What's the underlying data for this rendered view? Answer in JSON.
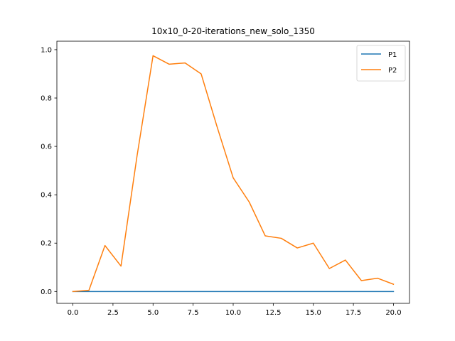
{
  "chart_data": {
    "type": "line",
    "title": "10x10_0-20-iterations_new_solo_1350",
    "xlabel": "",
    "ylabel": "",
    "xlim": [
      -1.0,
      21.0
    ],
    "ylim": [
      -0.049,
      1.035
    ],
    "xticks": [
      0.0,
      2.5,
      5.0,
      7.5,
      10.0,
      12.5,
      15.0,
      17.5,
      20.0
    ],
    "xtick_labels": [
      "0.0",
      "2.5",
      "5.0",
      "7.5",
      "10.0",
      "12.5",
      "15.0",
      "17.5",
      "20.0"
    ],
    "yticks": [
      0.0,
      0.2,
      0.4,
      0.6,
      0.8,
      1.0
    ],
    "ytick_labels": [
      "0.0",
      "0.2",
      "0.4",
      "0.6",
      "0.8",
      "1.0"
    ],
    "grid": false,
    "legend_position": "top-right",
    "x": [
      0,
      1,
      2,
      3,
      4,
      5,
      6,
      7,
      8,
      9,
      10,
      11,
      12,
      13,
      14,
      15,
      16,
      17,
      18,
      19,
      20
    ],
    "series": [
      {
        "name": "P1",
        "color": "#1f77b4",
        "values": [
          0,
          0,
          0,
          0,
          0,
          0,
          0,
          0,
          0,
          0,
          0,
          0,
          0,
          0,
          0,
          0,
          0,
          0,
          0,
          0,
          0
        ]
      },
      {
        "name": "P2",
        "color": "#ff7f0e",
        "values": [
          0.0,
          0.005,
          0.19,
          0.105,
          0.56,
          0.975,
          0.94,
          0.945,
          0.9,
          0.68,
          0.47,
          0.37,
          0.23,
          0.22,
          0.18,
          0.2,
          0.095,
          0.13,
          0.045,
          0.055,
          0.03
        ]
      }
    ]
  }
}
